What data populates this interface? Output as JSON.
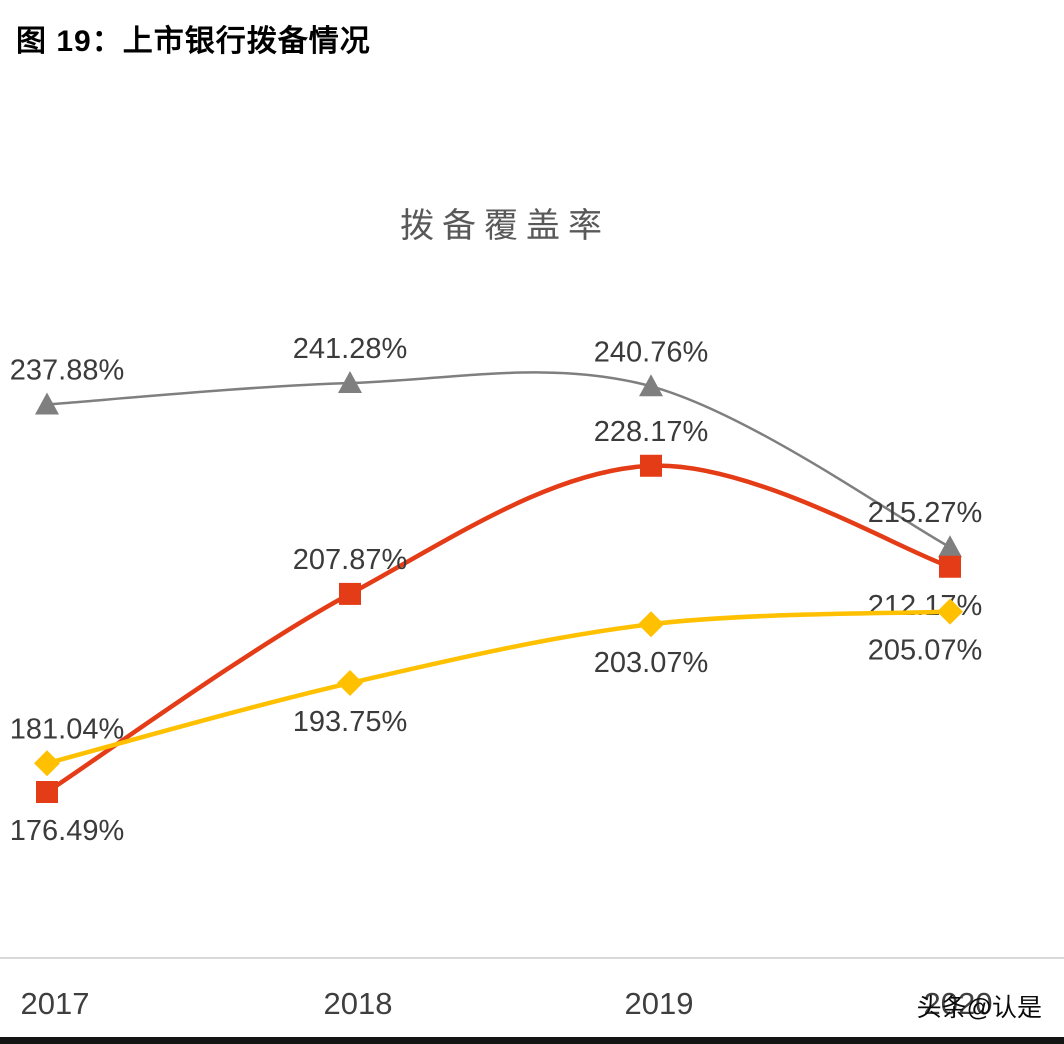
{
  "page": {
    "figure_caption": "图 19：上市银行拨备情况",
    "watermark": "头条@认是"
  },
  "chart_data": {
    "type": "line",
    "title": "拨备覆盖率",
    "categories": [
      "2017",
      "2018",
      "2019",
      "2020"
    ],
    "series": [
      {
        "name": "gray-triangle-series",
        "color": "#7f7f7f",
        "marker": "triangle",
        "values": [
          237.88,
          241.28,
          240.76,
          215.27
        ],
        "labels": [
          "237.88%",
          "241.28%",
          "240.76%",
          "215.27%"
        ],
        "label_positions": [
          "above",
          "above",
          "above",
          "above"
        ]
      },
      {
        "name": "red-square-series",
        "color": "#e43c17",
        "marker": "square",
        "values": [
          176.49,
          207.87,
          228.17,
          212.17
        ],
        "labels": [
          "176.49%",
          "207.87%",
          "228.17%",
          "212.17%"
        ],
        "label_positions": [
          "below",
          "above",
          "above",
          "below"
        ]
      },
      {
        "name": "yellow-diamond-series",
        "color": "#ffc000",
        "marker": "diamond",
        "values": [
          181.04,
          193.75,
          203.07,
          205.07
        ],
        "labels": [
          "181.04%",
          "193.75%",
          "203.07%",
          "205.07%"
        ],
        "label_positions": [
          "above",
          "below",
          "below",
          "below"
        ]
      }
    ],
    "ylim": [
      170,
      250
    ],
    "grid": false,
    "legend": "none"
  }
}
